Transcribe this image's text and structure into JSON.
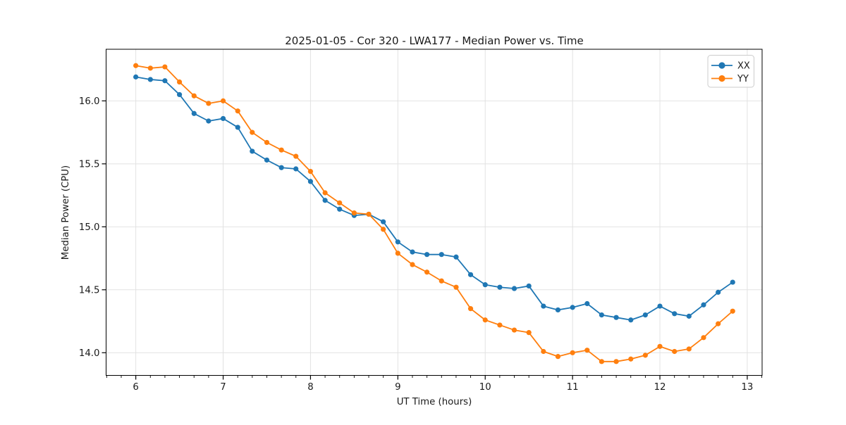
{
  "chart_data": {
    "type": "line",
    "title": "2025-01-05 - Cor 320 - LWA177 - Median Power vs. Time",
    "xlabel": "UT Time (hours)",
    "ylabel": "Median Power (CPU)",
    "xlim": [
      5.66,
      13.17
    ],
    "ylim": [
      13.82,
      16.41
    ],
    "x_ticks": [
      6,
      7,
      8,
      9,
      10,
      11,
      12,
      13
    ],
    "x_tick_labels": [
      "6",
      "7",
      "8",
      "9",
      "10",
      "11",
      "12",
      "13"
    ],
    "x_minor_tick_step": 0.16667,
    "y_ticks": [
      14.0,
      14.5,
      15.0,
      15.5,
      16.0
    ],
    "y_tick_labels": [
      "14.0",
      "14.5",
      "15.0",
      "15.5",
      "16.0"
    ],
    "grid": true,
    "grid_color": "#e2e2e2",
    "legend": {
      "position": "upper right",
      "entries": [
        "XX",
        "YY"
      ]
    },
    "x": [
      6.0,
      6.167,
      6.333,
      6.5,
      6.667,
      6.833,
      7.0,
      7.167,
      7.333,
      7.5,
      7.667,
      7.833,
      8.0,
      8.167,
      8.333,
      8.5,
      8.667,
      8.833,
      9.0,
      9.167,
      9.333,
      9.5,
      9.667,
      9.833,
      10.0,
      10.167,
      10.333,
      10.5,
      10.667,
      10.833,
      11.0,
      11.167,
      11.333,
      11.5,
      11.667,
      11.833,
      12.0,
      12.167,
      12.333,
      12.5,
      12.667,
      12.833
    ],
    "series": [
      {
        "name": "XX",
        "color": "#1f77b4",
        "marker": "circle",
        "values": [
          16.19,
          16.17,
          16.16,
          16.05,
          15.9,
          15.84,
          15.86,
          15.79,
          15.6,
          15.53,
          15.47,
          15.46,
          15.36,
          15.21,
          15.14,
          15.09,
          15.1,
          15.04,
          14.88,
          14.8,
          14.78,
          14.78,
          14.76,
          14.62,
          14.54,
          14.52,
          14.51,
          14.53,
          14.37,
          14.34,
          14.36,
          14.39,
          14.3,
          14.28,
          14.26,
          14.3,
          14.37,
          14.31,
          14.29,
          14.38,
          14.48,
          14.56
        ]
      },
      {
        "name": "YY",
        "color": "#ff7f0e",
        "marker": "circle",
        "values": [
          16.28,
          16.26,
          16.27,
          16.15,
          16.04,
          15.98,
          16.0,
          15.92,
          15.75,
          15.67,
          15.61,
          15.56,
          15.44,
          15.27,
          15.19,
          15.11,
          15.1,
          14.98,
          14.79,
          14.7,
          14.64,
          14.57,
          14.52,
          14.35,
          14.26,
          14.22,
          14.18,
          14.16,
          14.01,
          13.97,
          14.0,
          14.02,
          13.93,
          13.93,
          13.95,
          13.98,
          14.05,
          14.01,
          14.03,
          14.12,
          14.23,
          14.33
        ]
      }
    ]
  }
}
